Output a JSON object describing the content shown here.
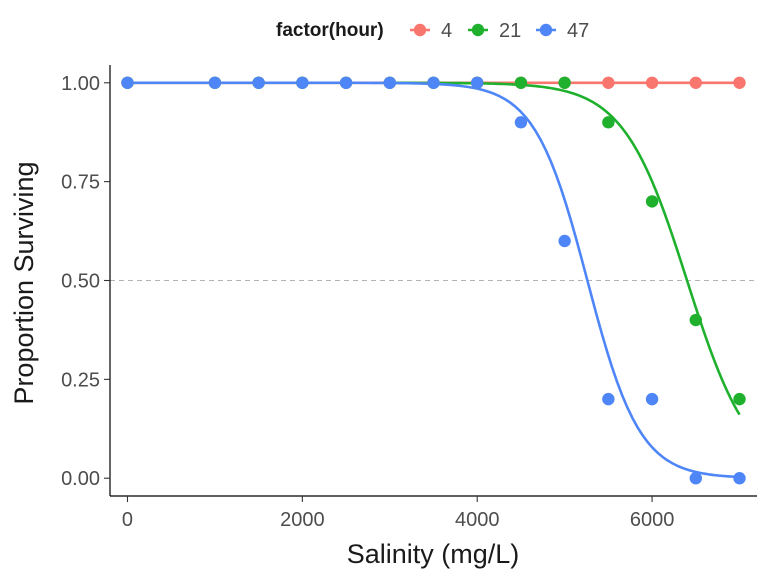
{
  "chart_data": {
    "type": "scatter",
    "xlabel": "Salinity (mg/L)",
    "ylabel": "Proportion Surviving",
    "xlim": [
      -200,
      7200
    ],
    "ylim": [
      -0.045,
      1.045
    ],
    "x_ticks": [
      0,
      2000,
      4000,
      6000
    ],
    "x_tick_labels": [
      "0",
      "2000",
      "4000",
      "6000"
    ],
    "y_ticks": [
      0,
      0.25,
      0.5,
      0.75,
      1
    ],
    "y_tick_labels": [
      "0.00",
      "0.25",
      "0.50",
      "0.75",
      "1.00"
    ],
    "reference_line": {
      "y": 0.5,
      "style": "dashed",
      "color": "#b3b3b3"
    },
    "grid": false,
    "legend": {
      "title": "factor(hour)",
      "position": "top"
    },
    "series": [
      {
        "name": "4",
        "color": "#F8766D",
        "points": [
          [
            0,
            1.0
          ],
          [
            1000,
            1.0
          ],
          [
            1500,
            1.0
          ],
          [
            2000,
            1.0
          ],
          [
            2500,
            1.0
          ],
          [
            3000,
            1.0
          ],
          [
            3500,
            1.0
          ],
          [
            4000,
            1.0
          ],
          [
            4500,
            1.0
          ],
          [
            5000,
            1.0
          ],
          [
            5500,
            1.0
          ],
          [
            6000,
            1.0
          ],
          [
            6500,
            1.0
          ],
          [
            7000,
            1.0
          ]
        ],
        "fit": {
          "type": "logistic",
          "midpoint": 20000,
          "scale": 100,
          "x_range": [
            0,
            7000
          ]
        }
      },
      {
        "name": "21",
        "color": "#1FB12E",
        "points": [
          [
            0,
            1.0
          ],
          [
            1000,
            1.0
          ],
          [
            1500,
            1.0
          ],
          [
            2000,
            1.0
          ],
          [
            2500,
            1.0
          ],
          [
            3000,
            1.0
          ],
          [
            3500,
            1.0
          ],
          [
            4000,
            1.0
          ],
          [
            4500,
            1.0
          ],
          [
            5000,
            1.0
          ],
          [
            5500,
            0.9
          ],
          [
            6000,
            0.7
          ],
          [
            6500,
            0.4
          ],
          [
            7000,
            0.2
          ]
        ],
        "fit": {
          "type": "logistic",
          "midpoint": 6400,
          "scale": 363,
          "x_range": [
            3000,
            7000
          ]
        }
      },
      {
        "name": "47",
        "color": "#4F86F7",
        "points": [
          [
            0,
            1.0
          ],
          [
            1000,
            1.0
          ],
          [
            1500,
            1.0
          ],
          [
            2000,
            1.0
          ],
          [
            2500,
            1.0
          ],
          [
            3000,
            1.0
          ],
          [
            3500,
            1.0
          ],
          [
            4000,
            1.0
          ],
          [
            4500,
            0.9
          ],
          [
            5000,
            0.6
          ],
          [
            5500,
            0.2
          ],
          [
            6000,
            0.2
          ],
          [
            6500,
            0.0
          ],
          [
            7000,
            0.0
          ]
        ],
        "fit": {
          "type": "logistic",
          "midpoint": 5260,
          "scale": 300,
          "x_range": [
            0,
            7000
          ]
        }
      }
    ]
  }
}
